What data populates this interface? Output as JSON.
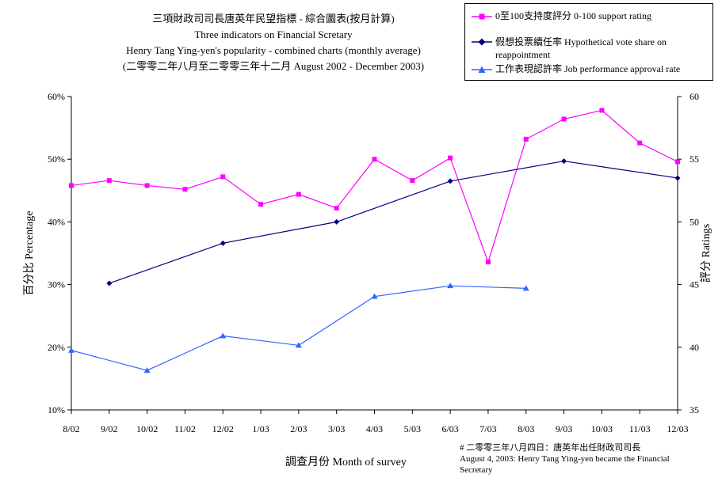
{
  "chart_data": {
    "type": "line",
    "title_lines": [
      "三項財政司司長唐英年民望指標 - 綜合圖表(按月計算)",
      "Three indicators on Financial Scretary",
      "Henry Tang Ying-yen's popularity - combined charts (monthly average)",
      "(二零零二年八月至二零零三年十二月 August 2002 - December 2003)"
    ],
    "xlabel": "調查月份 Month of survey",
    "ylabel_left": "百分比 Percentage",
    "ylabel_right": "評分 Ratings",
    "categories": [
      "8/02",
      "9/02",
      "10/02",
      "11/02",
      "12/02",
      "1/03",
      "2/03",
      "3/03",
      "4/03",
      "5/03",
      "6/03",
      "7/03",
      "8/03",
      "9/03",
      "10/03",
      "11/03",
      "12/03"
    ],
    "left_axis": {
      "range": [
        10,
        60
      ],
      "ticks": [
        "10%",
        "20%",
        "30%",
        "40%",
        "50%",
        "60%"
      ],
      "tick_values": [
        10,
        20,
        30,
        40,
        50,
        60
      ]
    },
    "right_axis": {
      "range": [
        35,
        60
      ],
      "ticks": [
        "35",
        "40",
        "45",
        "50",
        "55",
        "60"
      ],
      "tick_values": [
        35,
        40,
        45,
        50,
        55,
        60
      ]
    },
    "series": [
      {
        "name": "0至100支持度評分 0-100 support rating",
        "axis": "right",
        "color": "#ff00ff",
        "marker": "square",
        "values": [
          52.9,
          53.3,
          52.9,
          52.6,
          53.6,
          51.4,
          52.2,
          51.1,
          55.0,
          53.3,
          55.1,
          46.8,
          56.6,
          58.2,
          58.9,
          56.3,
          54.8
        ]
      },
      {
        "name": "假想投票續任率 Hypothetical vote share on reappointment",
        "axis": "left",
        "color": "#000080",
        "marker": "diamond",
        "values": [
          null,
          30.2,
          null,
          null,
          36.6,
          null,
          null,
          40.0,
          null,
          null,
          46.5,
          null,
          null,
          49.7,
          null,
          null,
          47.0
        ]
      },
      {
        "name": "工作表現認許率 Job performance approval rate",
        "axis": "left",
        "color": "#3366ff",
        "marker": "triangle",
        "values": [
          19.5,
          null,
          16.3,
          null,
          21.8,
          null,
          20.3,
          null,
          28.1,
          null,
          29.8,
          null,
          29.4,
          null,
          null,
          null,
          null
        ]
      }
    ],
    "legend_position": "top-right",
    "grid": false
  },
  "note_lines": [
    "# 二零零三年八月四日：唐英年出任財政司司長",
    "August 4, 2003: Henry Tang Ying-yen became the Financial",
    "Secretary"
  ]
}
